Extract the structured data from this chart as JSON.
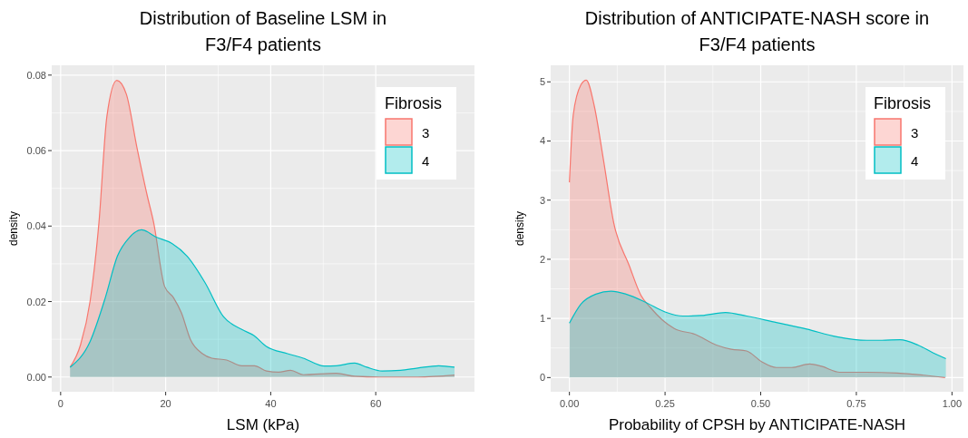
{
  "chart_data": [
    {
      "type": "area",
      "title": "Distribution of Baseline LSM in\nF3/F4 patients",
      "xlabel": "LSM (kPa)",
      "ylabel": "density",
      "legend_title": "Fibrosis",
      "legend": "top right",
      "grid": true,
      "xlim": [
        -1.7,
        78.8
      ],
      "ylim": [
        -0.0039,
        0.0826
      ],
      "xticks": [
        0,
        20,
        40,
        60
      ],
      "yticks": [
        {
          "value": 0,
          "label": "0.00"
        },
        {
          "value": 0.02,
          "label": "0.02"
        },
        {
          "value": 0.04,
          "label": "0.04"
        },
        {
          "value": 0.06,
          "label": "0.06"
        },
        {
          "value": 0.08,
          "label": "0.08"
        }
      ],
      "series": [
        {
          "name": "3",
          "color": "#f8766d",
          "x": [
            1.8,
            3.8,
            5.6,
            7.3,
            8.8,
            10.7,
            12.5,
            14.5,
            16.5,
            17.7,
            19.8,
            21.5,
            23,
            24.7,
            27,
            28.8,
            31.6,
            34.5,
            36.9,
            39.2,
            41.5,
            43.8,
            46.2,
            52.5,
            56,
            60.6,
            68,
            75
          ],
          "values": [
            0.0026,
            0.0086,
            0.02,
            0.041,
            0.069,
            0.0786,
            0.075,
            0.061,
            0.048,
            0.041,
            0.024,
            0.021,
            0.017,
            0.01,
            0.0062,
            0.005,
            0.0045,
            0.003,
            0.003,
            0.0016,
            0.0013,
            0.0018,
            0.0006,
            0.001,
            0.0002,
            0,
            0,
            0.0005
          ]
        },
        {
          "name": "4",
          "color": "#00bfc4",
          "x": [
            1.8,
            5.6,
            8.5,
            10.8,
            13.1,
            15.4,
            18.3,
            21.2,
            24.1,
            27.5,
            31,
            34.5,
            36.8,
            39.1,
            43.2,
            46.2,
            50.2,
            52.5,
            56,
            58.3,
            61.2,
            64.7,
            68,
            72,
            75
          ],
          "values": [
            0.0026,
            0.0094,
            0.021,
            0.032,
            0.037,
            0.039,
            0.037,
            0.0354,
            0.032,
            0.025,
            0.016,
            0.0126,
            0.011,
            0.0082,
            0.0062,
            0.005,
            0.0029,
            0.003,
            0.0037,
            0.0026,
            0.0016,
            0.0018,
            0.0024,
            0.003,
            0.0026
          ]
        }
      ]
    },
    {
      "type": "area",
      "title": "Distribution of ANTICIPATE-NASH score in\nF3/F4 patients",
      "xlabel": "Probability of CPSH by ANTICIPATE-NASH",
      "ylabel": "density",
      "legend_title": "Fibrosis",
      "legend": "top right",
      "grid": true,
      "xlim": [
        -0.049,
        1.03
      ],
      "ylim": [
        -0.24,
        5.28
      ],
      "xticks": [
        {
          "value": 0,
          "label": "0.00"
        },
        0.25,
        {
          "value": 0.5,
          "label": "0.50"
        },
        0.75,
        {
          "value": 1,
          "label": "1.00"
        }
      ],
      "yticks": [
        0,
        1,
        2,
        3,
        4,
        5
      ],
      "series": [
        {
          "name": "3",
          "color": "#f8766d",
          "x": [
            0,
            0.01,
            0.03,
            0.044,
            0.065,
            0.089,
            0.116,
            0.156,
            0.187,
            0.211,
            0.242,
            0.274,
            0.329,
            0.384,
            0.423,
            0.463,
            0.502,
            0.541,
            0.581,
            0.628,
            0.659,
            0.707,
            0.777,
            0.856,
            0.911,
            0.982
          ],
          "values": [
            3.3,
            4.44,
            4.95,
            5.03,
            4.59,
            3.68,
            2.61,
            1.9,
            1.39,
            1.19,
            0.98,
            0.83,
            0.73,
            0.55,
            0.48,
            0.45,
            0.27,
            0.17,
            0.17,
            0.23,
            0.19,
            0.09,
            0.09,
            0.076,
            0.05,
            0
          ]
        },
        {
          "name": "4",
          "color": "#00bfc4",
          "x": [
            0,
            0.03,
            0.069,
            0.109,
            0.148,
            0.203,
            0.25,
            0.297,
            0.345,
            0.408,
            0.463,
            0.541,
            0.62,
            0.699,
            0.777,
            0.817,
            0.864,
            0.911,
            0.95,
            0.984
          ],
          "values": [
            0.92,
            1.24,
            1.41,
            1.46,
            1.41,
            1.26,
            1.11,
            1.04,
            1.05,
            1.1,
            1.04,
            0.93,
            0.82,
            0.69,
            0.63,
            0.63,
            0.64,
            0.55,
            0.42,
            0.32
          ]
        }
      ]
    }
  ]
}
